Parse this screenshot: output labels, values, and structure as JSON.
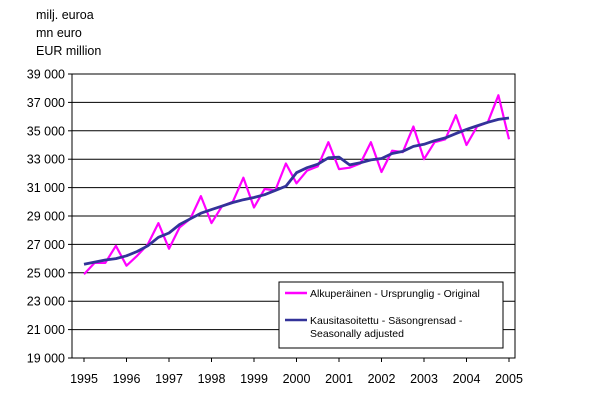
{
  "units": {
    "line1": "milj. euroa",
    "line2": "mn euro",
    "line3": "EUR million"
  },
  "chart_data": {
    "type": "line",
    "title": "",
    "xlabel": "",
    "ylabel": "",
    "ylim": [
      19000,
      39000
    ],
    "y_ticks": [
      19000,
      21000,
      23000,
      25000,
      27000,
      29000,
      31000,
      33000,
      35000,
      37000,
      39000
    ],
    "y_tick_labels": [
      "19 000",
      "21 000",
      "23 000",
      "25 000",
      "27 000",
      "29 000",
      "31 000",
      "33 000",
      "35 000",
      "37 000",
      "39 000"
    ],
    "x_tick_labels": [
      "1995",
      "1996",
      "1997",
      "1998",
      "1999",
      "2000",
      "2001",
      "2002",
      "2003",
      "2004",
      "2005"
    ],
    "x_quarters": [
      "1995Q1",
      "1995Q2",
      "1995Q3",
      "1995Q4",
      "1996Q1",
      "1996Q2",
      "1996Q3",
      "1996Q4",
      "1997Q1",
      "1997Q2",
      "1997Q3",
      "1997Q4",
      "1998Q1",
      "1998Q2",
      "1998Q3",
      "1998Q4",
      "1999Q1",
      "1999Q2",
      "1999Q3",
      "1999Q4",
      "2000Q1",
      "2000Q2",
      "2000Q3",
      "2000Q4",
      "2001Q1",
      "2001Q2",
      "2001Q3",
      "2001Q4",
      "2002Q1",
      "2002Q2",
      "2002Q3",
      "2002Q4",
      "2003Q1",
      "2003Q2",
      "2003Q3",
      "2003Q4",
      "2004Q1",
      "2004Q2",
      "2004Q3",
      "2004Q4",
      "2005Q1"
    ],
    "grid": "horizontal",
    "legend_position": "bottom-right",
    "series": [
      {
        "name": "Alkuperäinen - Ursprunglig - Original",
        "color": "#ff00ff",
        "values": [
          24900,
          25700,
          25700,
          26900,
          25500,
          26200,
          27000,
          28500,
          26700,
          28200,
          28800,
          30400,
          28500,
          29700,
          30000,
          31700,
          29600,
          30900,
          30800,
          32700,
          31300,
          32200,
          32500,
          34200,
          32300,
          32400,
          32700,
          34200,
          32100,
          33600,
          33500,
          35300,
          33000,
          34200,
          34400,
          36100,
          34000,
          35300,
          35600,
          37500,
          34400
        ]
      },
      {
        "name": "Kausitasoitettu - Säsongrensad - Seasonally adjusted",
        "color": "#333399",
        "values": [
          25600,
          25750,
          25900,
          26000,
          26200,
          26500,
          26900,
          27500,
          27800,
          28400,
          28800,
          29200,
          29450,
          29700,
          29950,
          30150,
          30300,
          30500,
          30800,
          31100,
          32050,
          32400,
          32650,
          33100,
          33150,
          32600,
          32750,
          32950,
          33050,
          33400,
          33550,
          33900,
          34050,
          34300,
          34500,
          34800,
          35100,
          35350,
          35600,
          35800,
          35900
        ]
      }
    ]
  }
}
